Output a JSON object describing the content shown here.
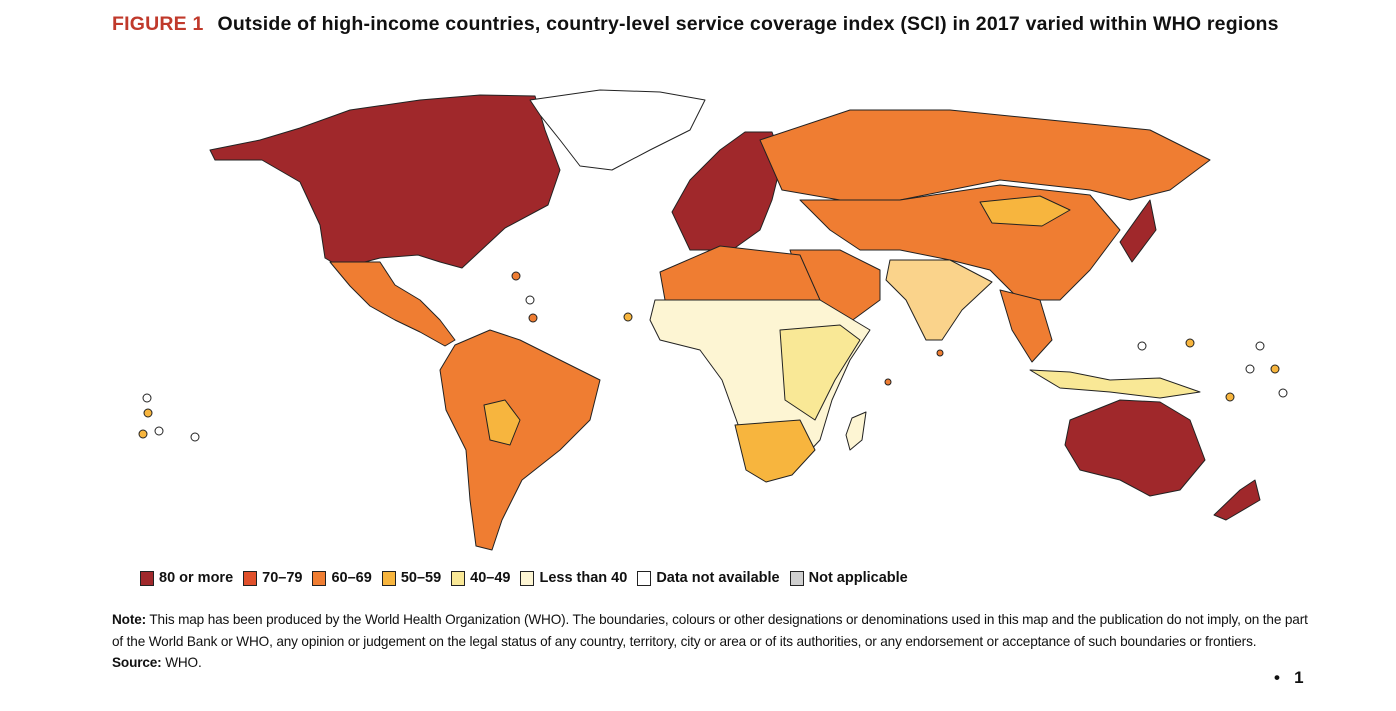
{
  "title": {
    "figure_label": "FIGURE 1",
    "text": "Outside of high-income countries, country-level service coverage index (SCI) in 2017 varied within WHO regions"
  },
  "legend": [
    {
      "label": "80 or more",
      "color": "#a0282b"
    },
    {
      "label": "70–79",
      "color": "#e0502b"
    },
    {
      "label": "60–69",
      "color": "#ef7d32"
    },
    {
      "label": "50–59",
      "color": "#f7b53e"
    },
    {
      "label": "40–49",
      "color": "#f9e896"
    },
    {
      "label": "Less than 40",
      "color": "#fdf5d3"
    },
    {
      "label": "Data not available",
      "color": "#ffffff"
    },
    {
      "label": "Not applicable",
      "color": "#cfcfcf"
    }
  ],
  "note": {
    "label": "Note:",
    "text": "This map has been produced by the World Health Organization (WHO). The boundaries, colours or other designations or denominations used in this map and the publication do not imply, on the part of the World Bank or WHO, any opinion or judgement on the legal status of any country, territory, city or area or of its authorities, or any endorsement or acceptance of such boundaries or frontiers."
  },
  "source": {
    "label": "Source:",
    "text": "WHO."
  },
  "page": {
    "bullet": "•",
    "number": "1"
  }
}
